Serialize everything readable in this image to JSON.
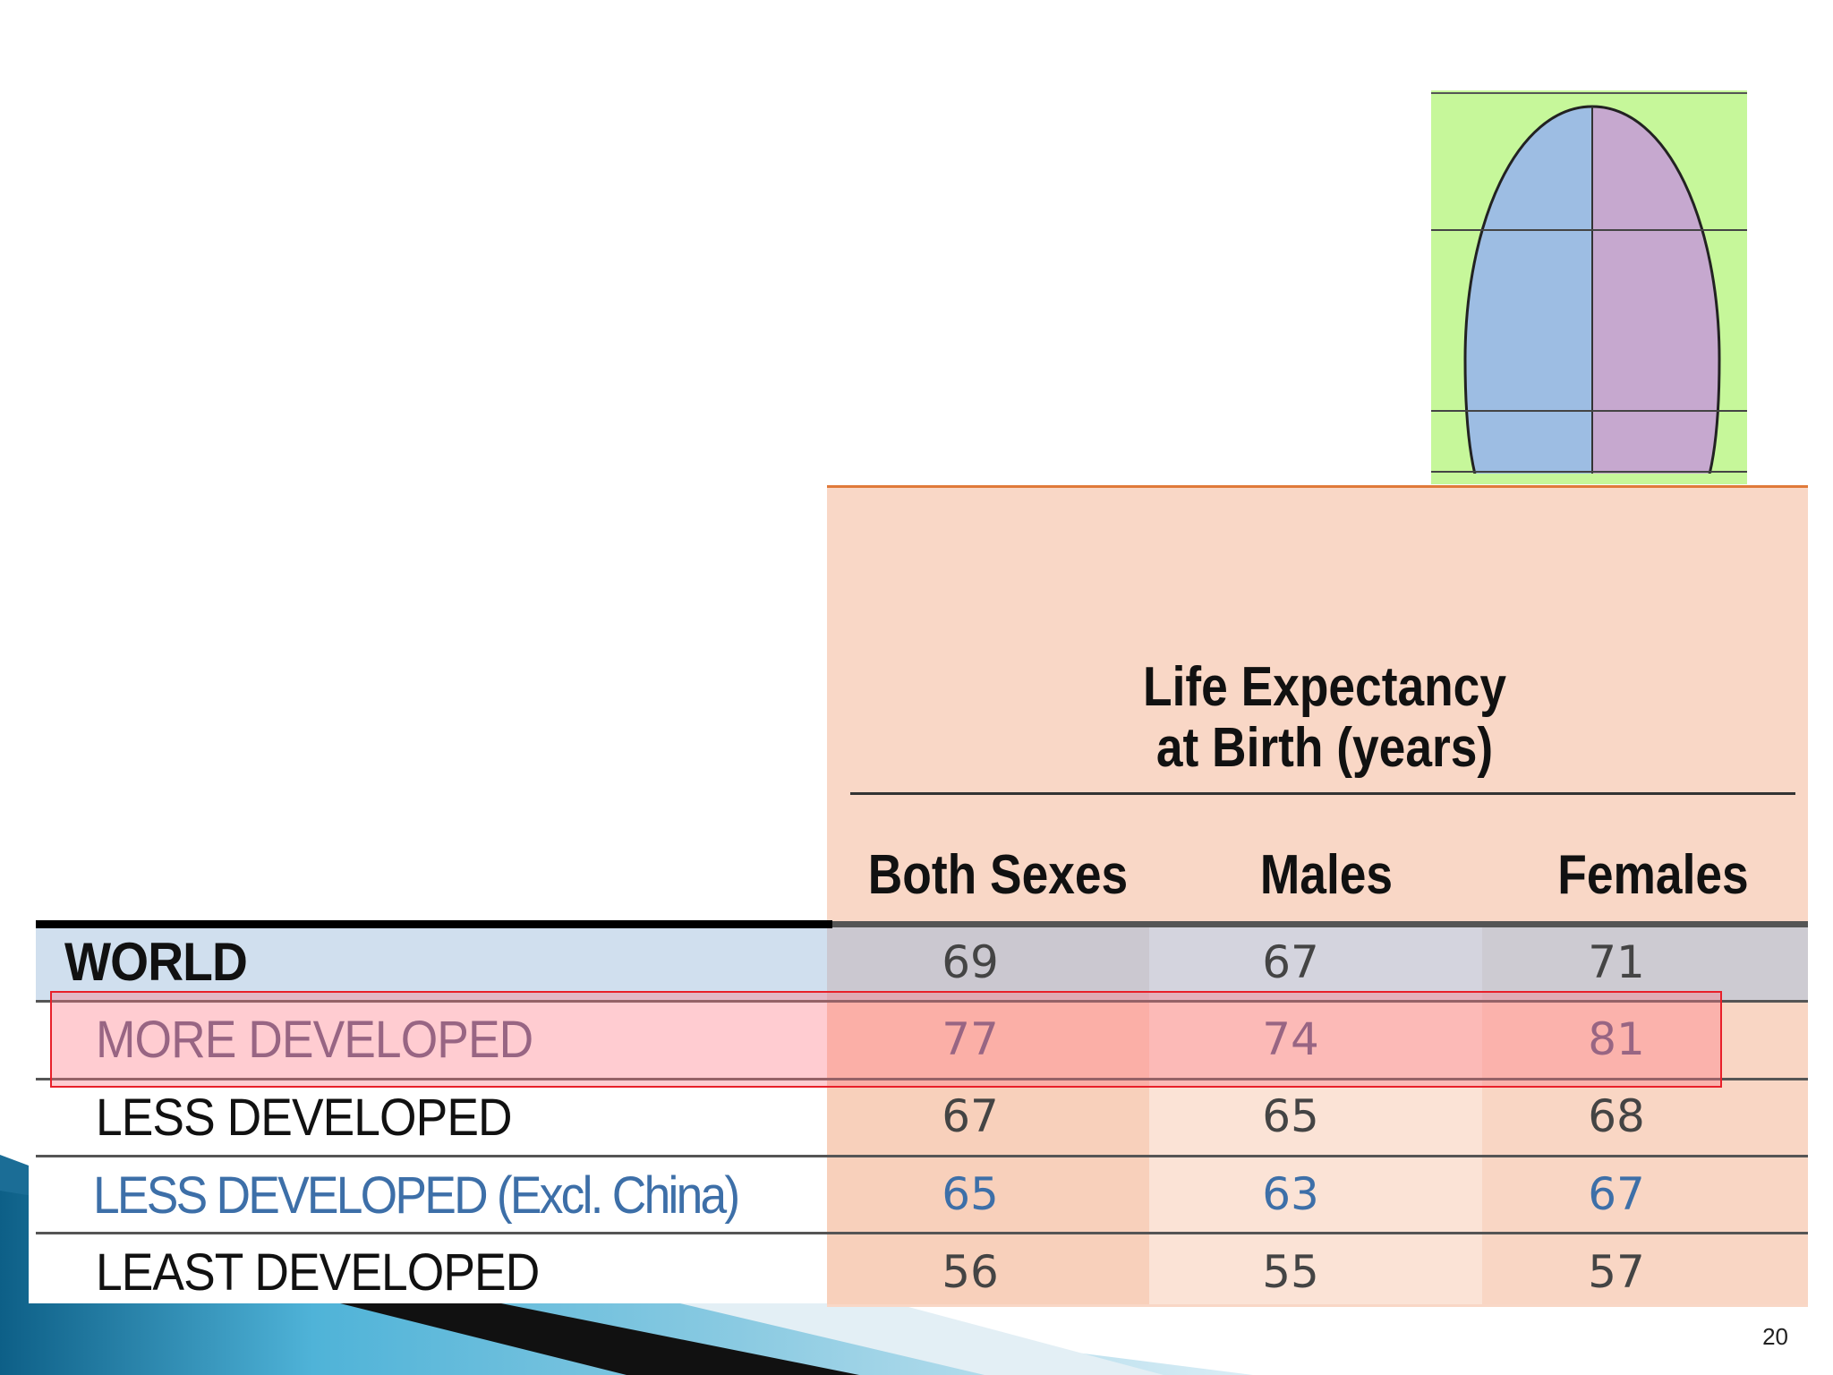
{
  "header": {
    "title_line1": "Life Expectancy",
    "title_line2": "at Birth (years)",
    "columns": [
      "Both Sexes",
      "Males",
      "Females"
    ]
  },
  "rows": [
    {
      "label": "WORLD",
      "values": [
        "69",
        "67",
        "71"
      ]
    },
    {
      "label": "MORE DEVELOPED",
      "values": [
        "77",
        "74",
        "81"
      ]
    },
    {
      "label": "LESS DEVELOPED",
      "values": [
        "67",
        "65",
        "68"
      ]
    },
    {
      "label": "LESS DEVELOPED (Excl. China)",
      "values": [
        "65",
        "63",
        "67"
      ]
    },
    {
      "label": "LEAST DEVELOPED",
      "values": [
        "56",
        "55",
        "57"
      ]
    }
  ],
  "highlighted_row": "MORE DEVELOPED",
  "page_number": "20",
  "colors": {
    "panel": "#f9d7c6",
    "highlight": "#ff9aa2",
    "highlight_border": "#e8202a",
    "blue_text": "#3d6fa8",
    "egg_blue": "#9dbde3",
    "egg_purple": "#c6a8cf",
    "egg_bg": "#c6f79a"
  }
}
